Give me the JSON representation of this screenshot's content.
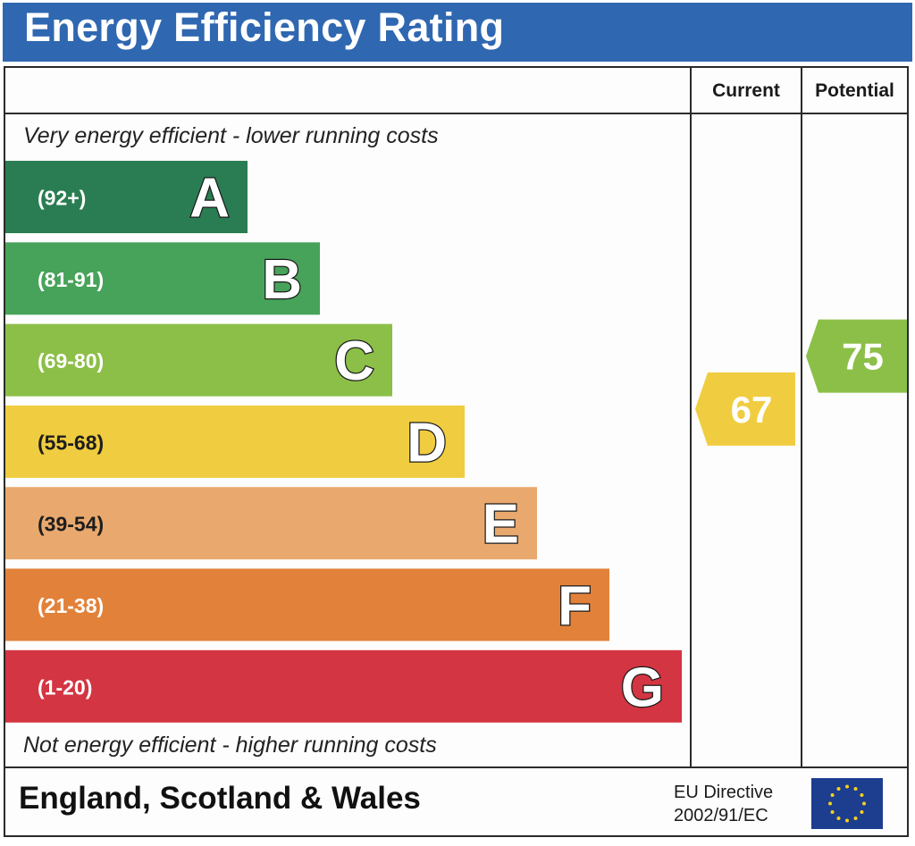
{
  "header": {
    "title": "Energy Efficiency Rating"
  },
  "columns": {
    "current": "Current",
    "potential": "Potential"
  },
  "notes": {
    "top": "Very energy efficient - lower running costs",
    "bottom": "Not energy efficient - higher running costs"
  },
  "footer": {
    "region": "England, Scotland & Wales",
    "directive_line1": "EU Directive",
    "directive_line2": "2002/91/EC",
    "flag_icon": "eu-flag-icon"
  },
  "chart_data": {
    "type": "bar",
    "title": "Energy Efficiency Rating",
    "bands": [
      {
        "letter": "A",
        "range": "(92+)",
        "min": 92,
        "max": 100,
        "color": "#2a7d52"
      },
      {
        "letter": "B",
        "range": "(81-91)",
        "min": 81,
        "max": 91,
        "color": "#48a35a"
      },
      {
        "letter": "C",
        "range": "(69-80)",
        "min": 69,
        "max": 80,
        "color": "#8cbf48"
      },
      {
        "letter": "D",
        "range": "(55-68)",
        "min": 55,
        "max": 68,
        "color": "#f0cd40"
      },
      {
        "letter": "E",
        "range": "(39-54)",
        "min": 39,
        "max": 54,
        "color": "#e9a96e"
      },
      {
        "letter": "F",
        "range": "(21-38)",
        "min": 21,
        "max": 38,
        "color": "#e2823a"
      },
      {
        "letter": "G",
        "range": "(1-20)",
        "min": 1,
        "max": 20,
        "color": "#d33542"
      }
    ],
    "ratings": {
      "current": {
        "value": 67,
        "band": "D",
        "color": "#f0cd40"
      },
      "potential": {
        "value": 75,
        "band": "C",
        "color": "#8cbf48"
      }
    }
  }
}
